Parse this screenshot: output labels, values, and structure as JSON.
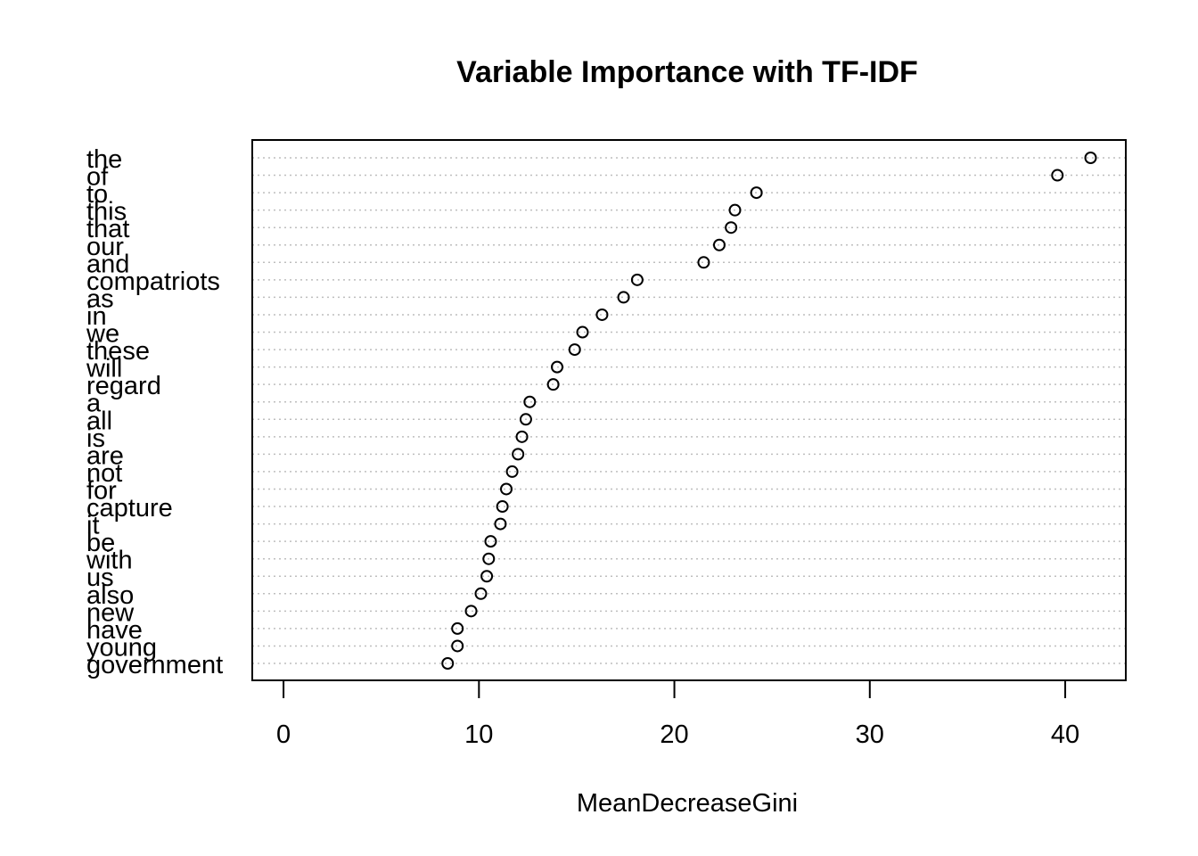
{
  "chart_data": {
    "type": "scatter",
    "title": "Variable Importance with TF-IDF",
    "xlabel": "MeanDecreaseGini",
    "ylabel": "",
    "xlim": [
      -1.6,
      43.1
    ],
    "x_ticks": [
      0,
      10,
      20,
      30,
      40
    ],
    "x_tick_labels": [
      "0",
      "10",
      "20",
      "30",
      "40"
    ],
    "grid": "dotted horizontal lines per category",
    "marker": "open circle",
    "categories": [
      "the",
      "of",
      "to",
      "this",
      "that",
      "our",
      "and",
      "compatriots",
      "as",
      "in",
      "we",
      "these",
      "will",
      "regard",
      "a",
      "all",
      "is",
      "are",
      "not",
      "for",
      "capture",
      "it",
      "be",
      "with",
      "us",
      "also",
      "new",
      "have",
      "young",
      "government"
    ],
    "values": [
      41.3,
      39.6,
      24.2,
      23.1,
      22.9,
      22.3,
      21.5,
      18.1,
      17.4,
      16.3,
      15.3,
      14.9,
      14.0,
      13.8,
      12.6,
      12.4,
      12.2,
      12.0,
      11.7,
      11.4,
      11.2,
      11.1,
      10.6,
      10.5,
      10.4,
      10.1,
      9.6,
      8.9,
      8.9,
      8.4
    ]
  }
}
